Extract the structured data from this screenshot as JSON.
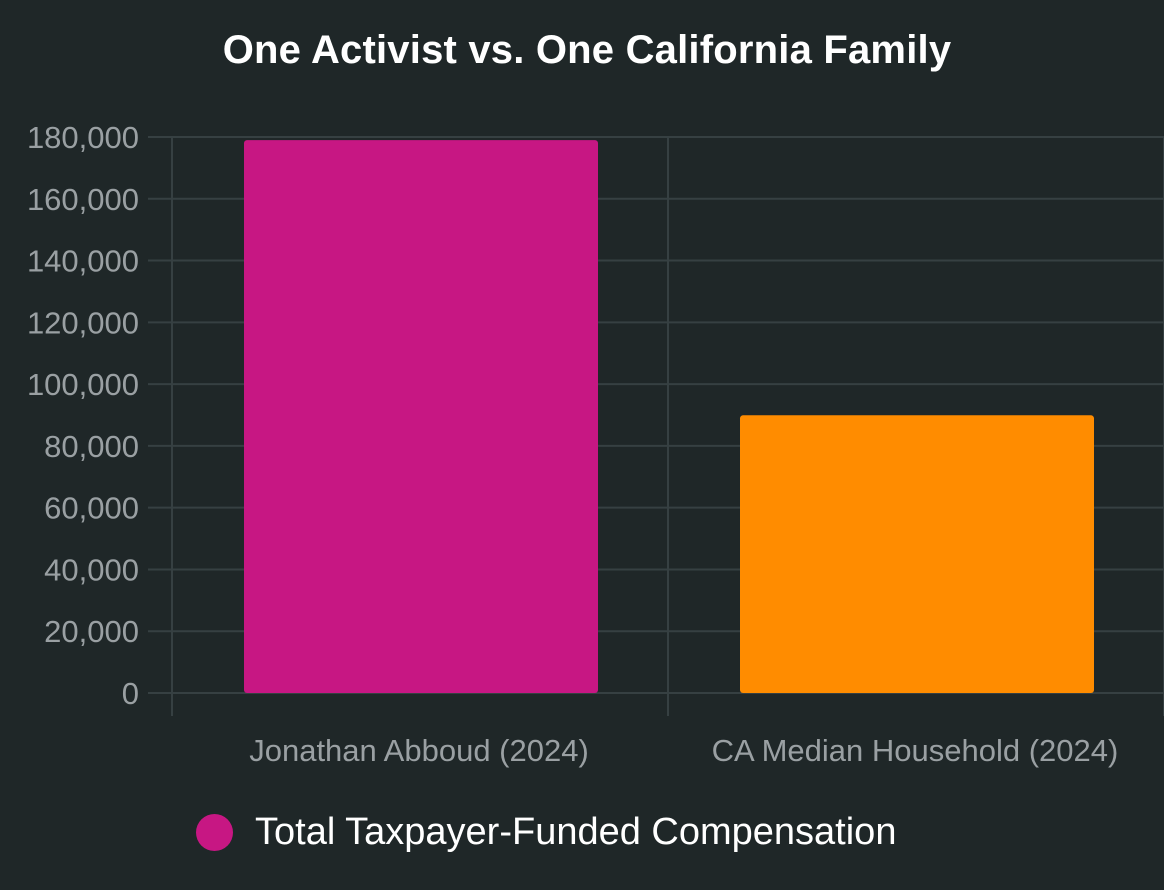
{
  "chart_data": {
    "type": "bar",
    "title": "One Activist vs. One California Family",
    "categories": [
      "Jonathan Abboud (2024)",
      "CA Median Household (2024)"
    ],
    "series": [
      {
        "name": "Total Taxpayer-Funded Compensation",
        "values": [
          179000,
          89900
        ],
        "colors": [
          "#c71783",
          "#ff8c00"
        ]
      }
    ],
    "xlabel": "",
    "ylabel": "",
    "ylim": [
      0,
      180000
    ],
    "yticks": [
      "0",
      "20,000",
      "40,000",
      "60,000",
      "80,000",
      "100,000",
      "120,000",
      "140,000",
      "160,000",
      "180,000"
    ],
    "grid": true,
    "legend_position": "bottom"
  },
  "colors": {
    "background": "#1f2728",
    "grid": "#364042",
    "title": "#ffffff",
    "ticks": "#9aa0a3"
  }
}
